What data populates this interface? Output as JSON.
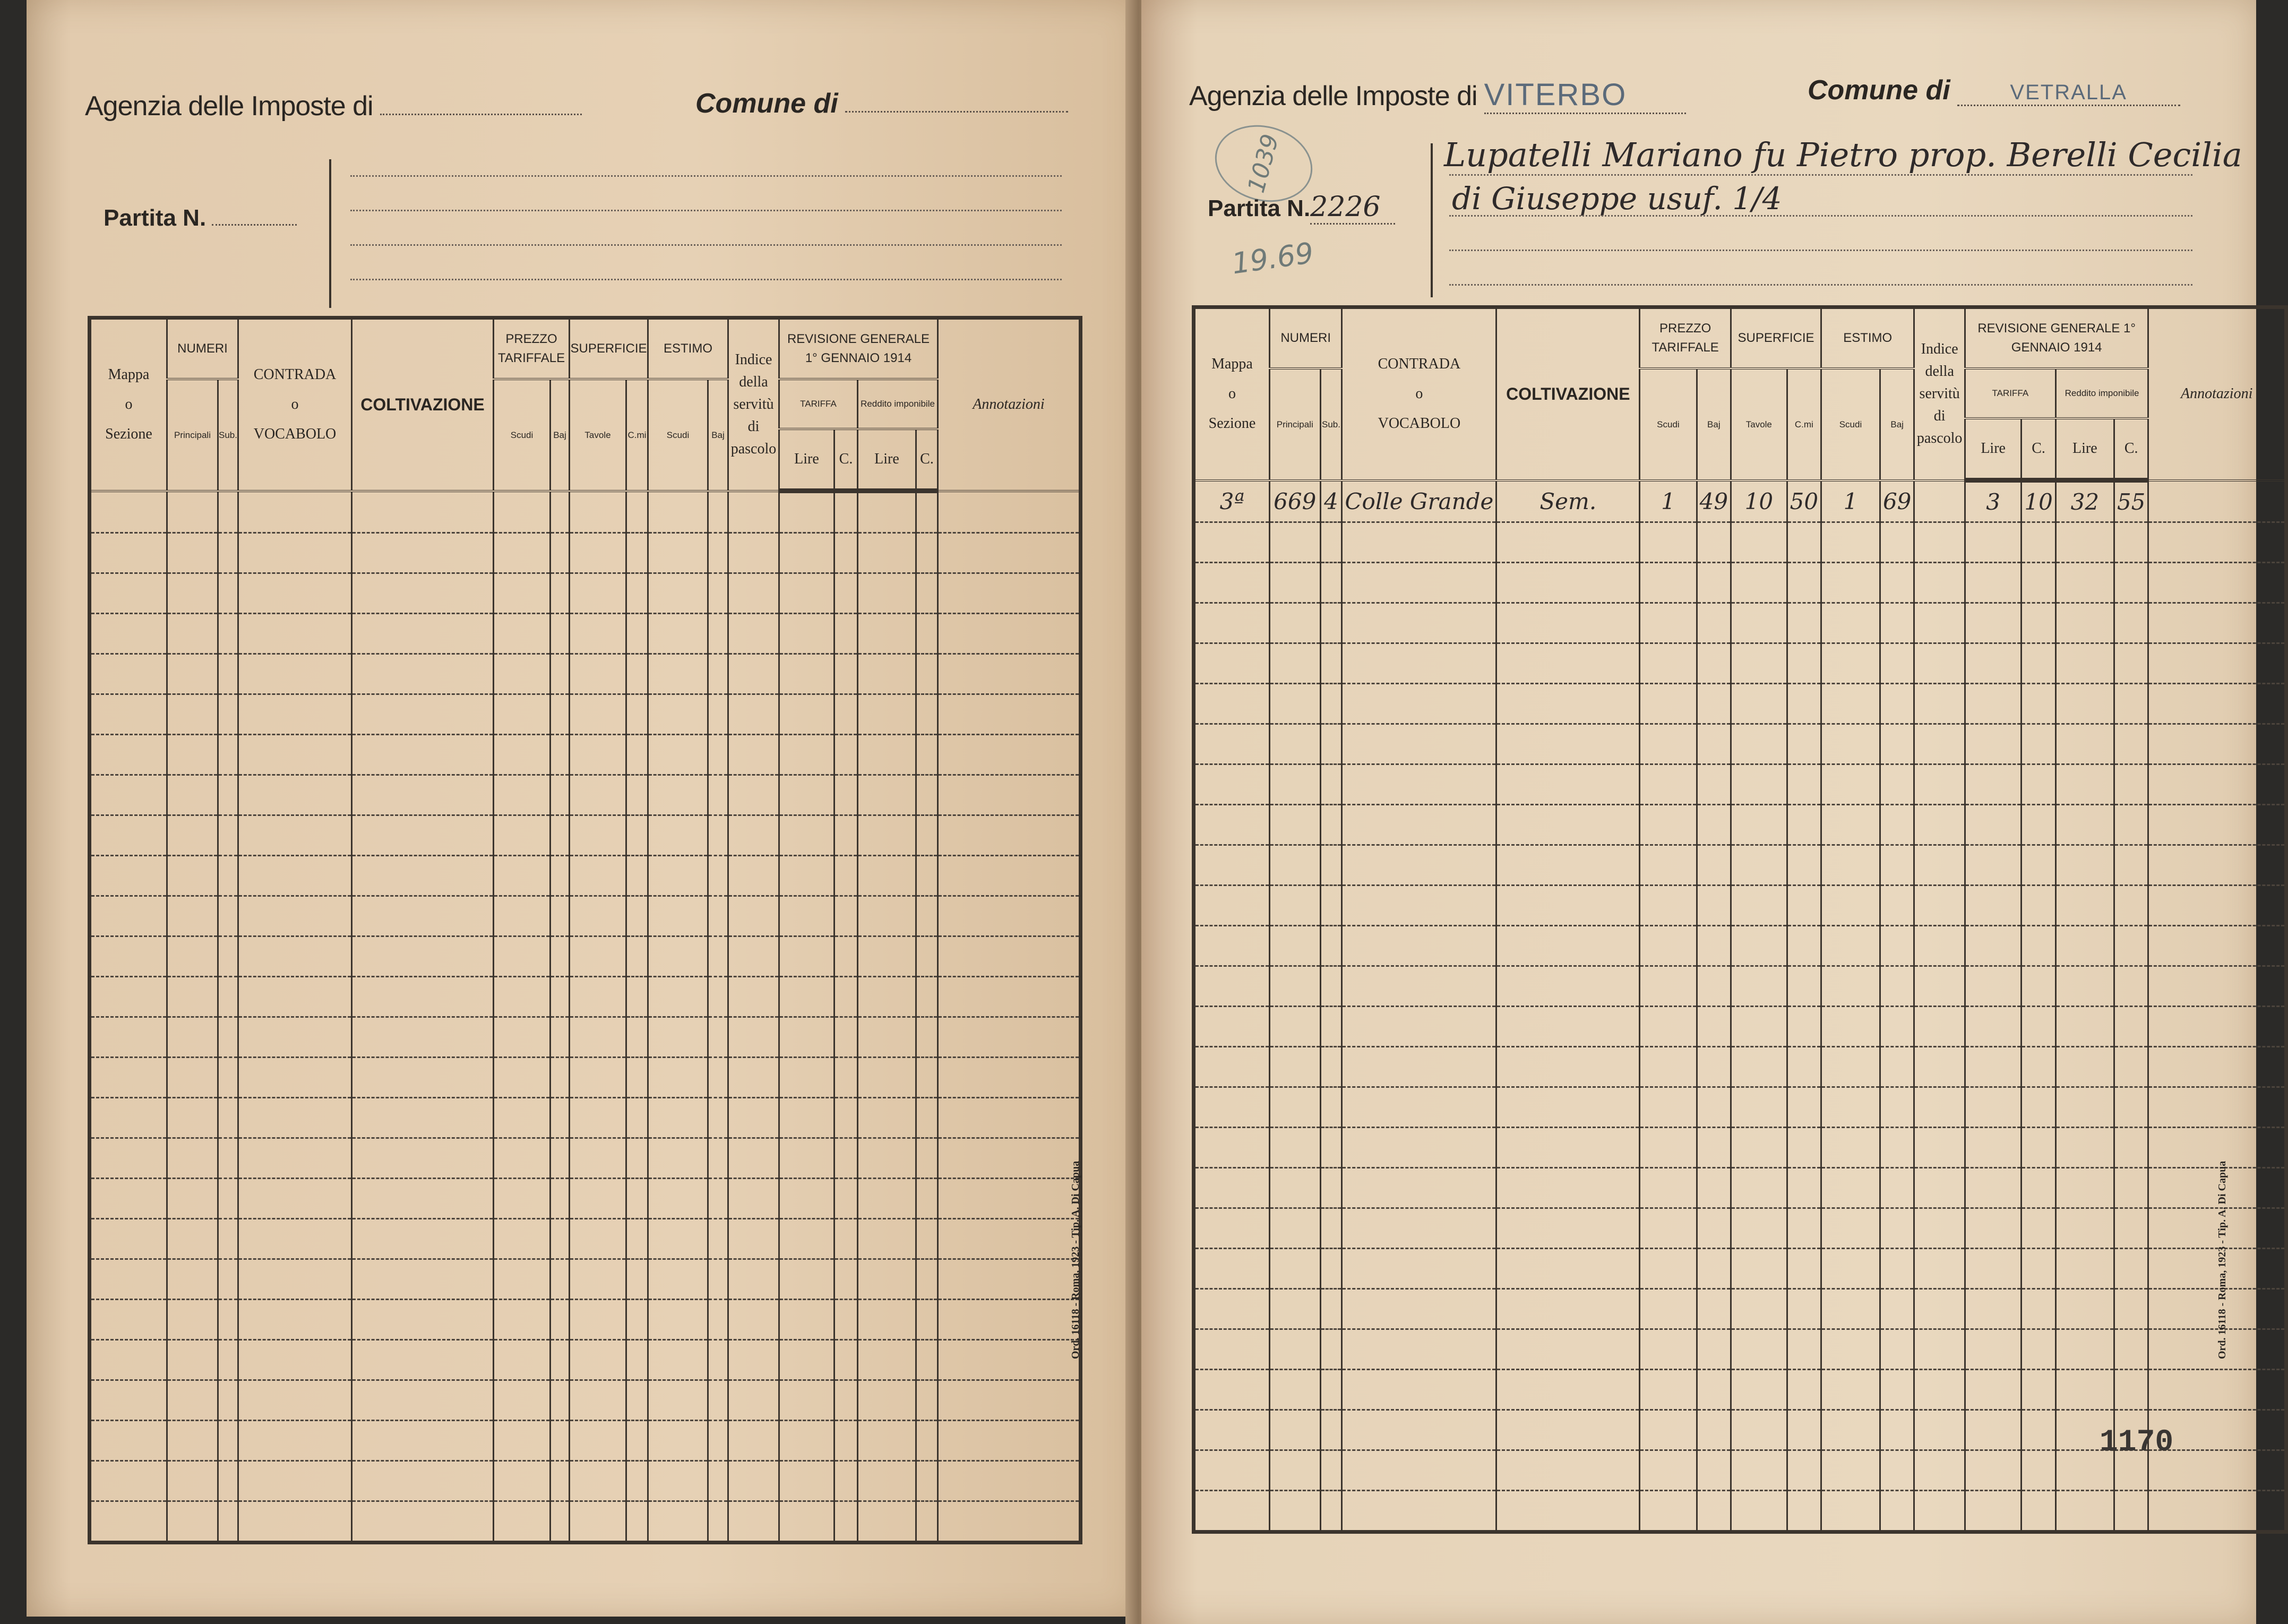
{
  "left_page": {
    "agency_label": "Agenzia delle Imposte di",
    "agency_value": "",
    "comune_label": "Comune di",
    "comune_value": "",
    "partita_label": "Partita N.",
    "partita_value": "",
    "printer_note": "Ord. 16118 - Roma, 1923 - Tip. A. Di Capua"
  },
  "right_page": {
    "agency_label": "Agenzia delle Imposte di",
    "agency_value": "VITERBO",
    "comune_label": "Comune di",
    "comune_value": "VETRALLA",
    "partita_label": "Partita N.",
    "partita_value": "2226",
    "circled_number": "1039",
    "pencil_note": "19.69",
    "owner_lines": [
      "Lupatelli Mariano fu Pietro prop. Berelli Cecilia",
      "di Giuseppe usuf. 1/4"
    ],
    "printer_note": "Ord. 16118 - Roma, 1923 - Tip. A. Di Capua",
    "sheet_number": "1170"
  },
  "table_header": {
    "mappa": "Mappa",
    "o1": "o",
    "sezione": "Sezione",
    "numeri": "NUMERI",
    "principali": "Principali",
    "sub": "Sub.",
    "contrada": "CONTRADA",
    "o2": "o",
    "vocabolo": "VOCABOLO",
    "coltivazione": "COLTIVAZIONE",
    "prezzo": "PREZZO TARIFFALE",
    "superficie": "SUPERFICIE",
    "estimo": "ESTIMO",
    "scudi": "Scudi",
    "baj": "Baj",
    "tavole": "Tavole",
    "cmi": "C.mi",
    "indice": "Indice della servitù di pascolo",
    "revisione": "REVISIONE GENERALE 1° GENNAIO 1914",
    "tariffa": "TARIFFA",
    "reddito": "Reddito imponibile",
    "lire": "Lire",
    "c": "C.",
    "annotazioni": "Annotazioni"
  },
  "right_entries": [
    [
      "3ª",
      "669",
      "4",
      "Colle Grande",
      "Sem.",
      "1",
      "49",
      "10",
      "50",
      "1",
      "69",
      "",
      "3",
      "10",
      "32",
      "55",
      ""
    ]
  ],
  "colors": {
    "paper": "#e6d3b8",
    "ink": "#2a2622",
    "stamp": "#5b6a7a",
    "pencil": "#6f7a78"
  }
}
